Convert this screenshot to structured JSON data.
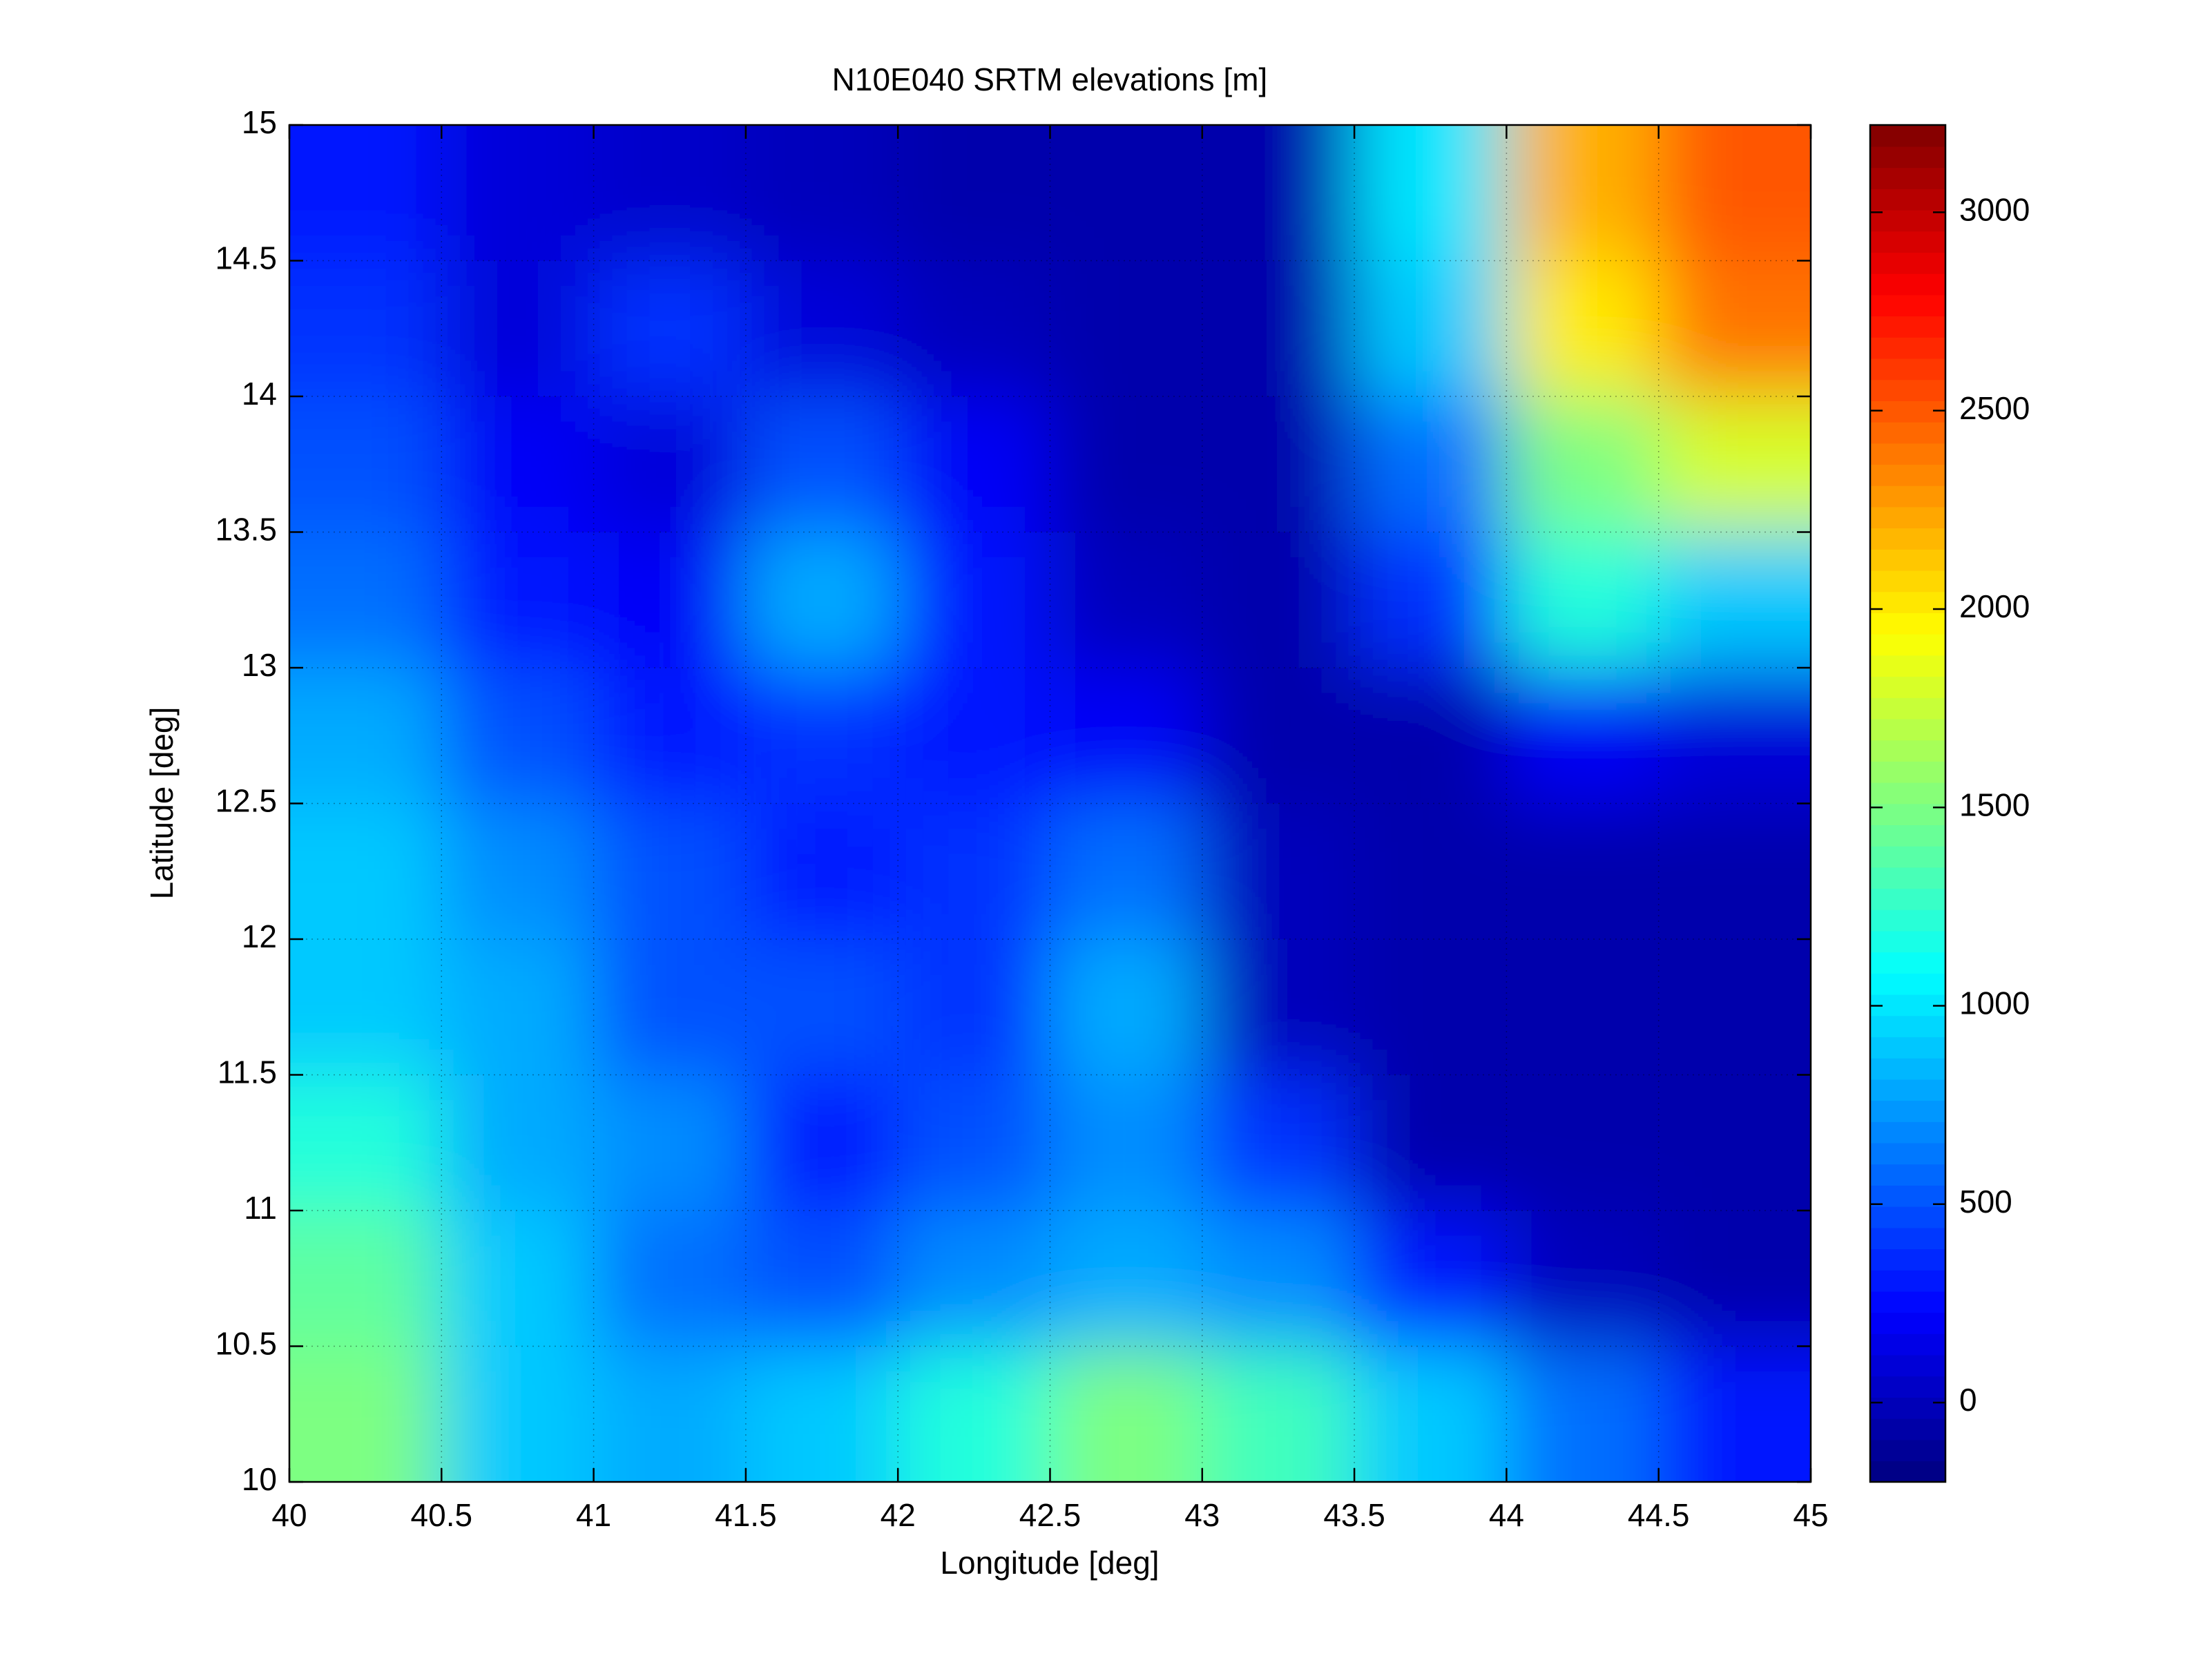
{
  "chart_data": {
    "type": "heatmap",
    "title": "N10E040 SRTM elevations [m]",
    "xlabel": "Longitude [deg]",
    "ylabel": "Latitude [deg]",
    "xlim": [
      40,
      45
    ],
    "ylim": [
      10,
      15
    ],
    "xticks": [
      40,
      40.5,
      41,
      41.5,
      42,
      42.5,
      43,
      43.5,
      44,
      44.5,
      45
    ],
    "yticks": [
      10,
      10.5,
      11,
      11.5,
      12,
      12.5,
      13,
      13.5,
      14,
      14.5,
      15
    ],
    "grid": true,
    "colormap": "jet",
    "clim": [
      -200,
      3220
    ],
    "cticks": [
      0,
      500,
      1000,
      1500,
      2000,
      2500,
      3000
    ],
    "z": [
      [
        300,
        100,
        50,
        0,
        -50,
        -50,
        -50,
        1000,
        2200,
        2500
      ],
      [
        400,
        100,
        400,
        100,
        0,
        -50,
        -50,
        900,
        2000,
        2400
      ],
      [
        500,
        200,
        100,
        500,
        200,
        -50,
        -50,
        600,
        1500,
        1800
      ],
      [
        600,
        300,
        200,
        800,
        300,
        0,
        -50,
        400,
        1200,
        900
      ],
      [
        800,
        500,
        300,
        400,
        300,
        200,
        -50,
        -50,
        200,
        100
      ],
      [
        900,
        700,
        500,
        300,
        400,
        600,
        0,
        -50,
        -50,
        -50
      ],
      [
        900,
        800,
        500,
        500,
        400,
        800,
        0,
        -50,
        -50,
        -50
      ],
      [
        1200,
        800,
        700,
        300,
        500,
        700,
        400,
        -50,
        -50,
        -50
      ],
      [
        1400,
        900,
        600,
        500,
        700,
        800,
        700,
        300,
        0,
        -50
      ],
      [
        1500,
        900,
        800,
        900,
        1200,
        1500,
        1300,
        900,
        600,
        300
      ]
    ]
  }
}
